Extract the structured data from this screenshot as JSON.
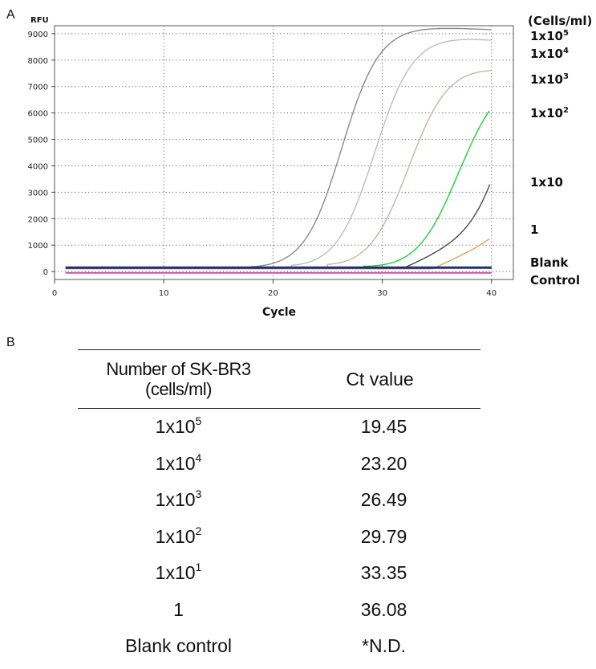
{
  "panel_a_label": "A",
  "panel_b_label": "B",
  "chart_data": {
    "type": "line",
    "ylabel": "RFU",
    "xlabel": "Cycle",
    "legend_title": "(Cells/ml)",
    "xlim": [
      0,
      42
    ],
    "ylim": [
      -300,
      9300
    ],
    "x_ticks": [
      0,
      10,
      20,
      30,
      40
    ],
    "y_ticks": [
      0,
      1000,
      2000,
      3000,
      4000,
      5000,
      6000,
      7000,
      8000,
      9000
    ],
    "grid": "dotted",
    "series": [
      {
        "name": "1x10^5",
        "color": "#8a8a8a",
        "ct": 19.45,
        "ymax": 9500,
        "mid": 26.3,
        "slope": 1.75,
        "endpoint": 9150
      },
      {
        "name": "1x10^4",
        "color": "#bdbdbd",
        "ct": 23.2,
        "ymax": 9400,
        "mid": 29.3,
        "slope": 1.8,
        "endpoint": 8750
      },
      {
        "name": "1x10^3",
        "color": "#c9b4a0",
        "ct": 26.49,
        "ymax": 8600,
        "mid": 32.4,
        "slope": 1.9,
        "endpoint": 7600
      },
      {
        "name": "1x10^2",
        "color": "#19d03a",
        "ct": 29.79,
        "ymax": 8200,
        "mid": 37.0,
        "slope": 2.0,
        "endpoint": 6200
      },
      {
        "name": "1x10",
        "color": "#4a4a4a",
        "ct": 33.35,
        "ymax": 7500,
        "mid": 41.7,
        "slope": 1.6,
        "endpoint": 3450
      },
      {
        "name": "1",
        "color": "#e8a060",
        "ct": 36.08,
        "ymax": 6000,
        "mid": 44.5,
        "slope": 1.3,
        "endpoint": 1300
      },
      {
        "name": "Blank Control",
        "color": "#1d2f6e",
        "baseline": 150
      },
      {
        "name": "Blank Control (pink)",
        "color": "#d64fa6",
        "baseline": -50
      }
    ],
    "right_labels": [
      {
        "key": "1x10^5",
        "base": "1x10",
        "exp": "5"
      },
      {
        "key": "1x10^4",
        "base": "1x10",
        "exp": "4"
      },
      {
        "key": "1x10^3",
        "base": "1x10",
        "exp": "3"
      },
      {
        "key": "1x10^2",
        "base": "1x10",
        "exp": "2"
      },
      {
        "key": "1x10",
        "base": "1x10",
        "exp": ""
      },
      {
        "key": "1",
        "base": "1",
        "exp": ""
      },
      {
        "key": "blank",
        "base": "Blank",
        "exp": ""
      },
      {
        "key": "control",
        "base": "Control",
        "exp": ""
      }
    ]
  },
  "table": {
    "header_col1_line1": "Number of SK-BR3",
    "header_col1_line2": "(cells/ml)",
    "header_col2": "Ct value",
    "rows": [
      {
        "base": "1x10",
        "exp": "5",
        "ct": "19.45"
      },
      {
        "base": "1x10",
        "exp": "4",
        "ct": "23.20"
      },
      {
        "base": "1x10",
        "exp": "3",
        "ct": "26.49"
      },
      {
        "base": "1x10",
        "exp": "2",
        "ct": "29.79"
      },
      {
        "base": "1x10",
        "exp": "1",
        "ct": "33.35"
      },
      {
        "base": "1",
        "exp": "",
        "ct": "36.08"
      },
      {
        "base": "Blank control",
        "exp": "",
        "ct": "*N.D."
      }
    ]
  }
}
